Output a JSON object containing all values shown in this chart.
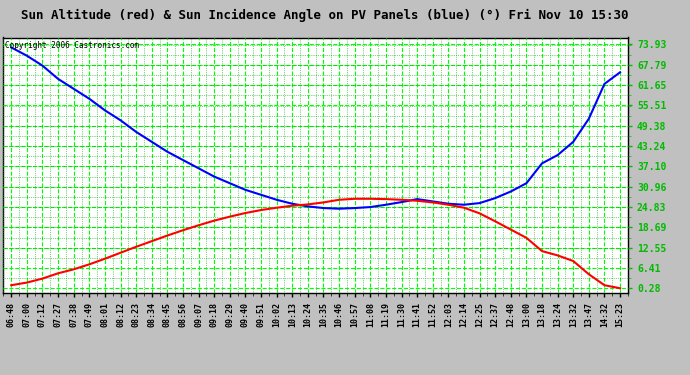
{
  "title": "Sun Altitude (red) & Sun Incidence Angle on PV Panels (blue) (°) Fri Nov 10 15:30",
  "copyright": "Copyright 2006 Castronics.com",
  "background_color": "#c0c0c0",
  "plot_bg_color": "#ffffff",
  "grid_major_color": "#00ff00",
  "grid_minor_color": "#00aa00",
  "title_fontsize": 9,
  "ytick_color": "#00bb00",
  "ytick_values": [
    0.28,
    6.41,
    12.55,
    18.69,
    24.83,
    30.96,
    37.1,
    43.24,
    49.38,
    55.51,
    61.65,
    67.79,
    73.93
  ],
  "ymin": -1.0,
  "ymax": 76.0,
  "x_labels": [
    "06:48",
    "07:00",
    "07:12",
    "07:27",
    "07:38",
    "07:49",
    "08:01",
    "08:12",
    "08:23",
    "08:34",
    "08:45",
    "08:56",
    "09:07",
    "09:18",
    "09:29",
    "09:40",
    "09:51",
    "10:02",
    "10:13",
    "10:24",
    "10:35",
    "10:46",
    "10:57",
    "11:08",
    "11:19",
    "11:30",
    "11:41",
    "11:52",
    "12:03",
    "12:14",
    "12:25",
    "12:37",
    "12:48",
    "13:00",
    "13:18",
    "13:24",
    "13:32",
    "13:47",
    "14:32",
    "15:23"
  ],
  "line_red_color": "#ff0000",
  "line_blue_color": "#0000ff",
  "line_width": 1.5,
  "red_data": [
    1.2,
    2.0,
    3.2,
    4.8,
    6.0,
    7.5,
    9.2,
    11.0,
    12.8,
    14.5,
    16.2,
    17.8,
    19.3,
    20.7,
    21.9,
    23.0,
    23.9,
    24.6,
    25.2,
    25.6,
    26.2,
    27.0,
    27.3,
    27.3,
    27.2,
    27.0,
    26.7,
    26.2,
    25.5,
    24.6,
    22.9,
    20.5,
    18.0,
    15.5,
    11.5,
    10.2,
    8.5,
    4.5,
    1.2,
    0.28
  ],
  "blue_data": [
    73.0,
    70.5,
    67.5,
    63.5,
    60.5,
    57.5,
    54.0,
    51.0,
    47.5,
    44.5,
    41.5,
    39.0,
    36.5,
    34.0,
    32.0,
    30.0,
    28.5,
    27.0,
    25.8,
    25.0,
    24.5,
    24.3,
    24.5,
    24.8,
    25.5,
    26.3,
    27.2,
    26.5,
    25.8,
    25.5,
    26.0,
    27.5,
    29.5,
    32.0,
    38.0,
    40.5,
    44.5,
    51.5,
    62.0,
    65.5
  ]
}
